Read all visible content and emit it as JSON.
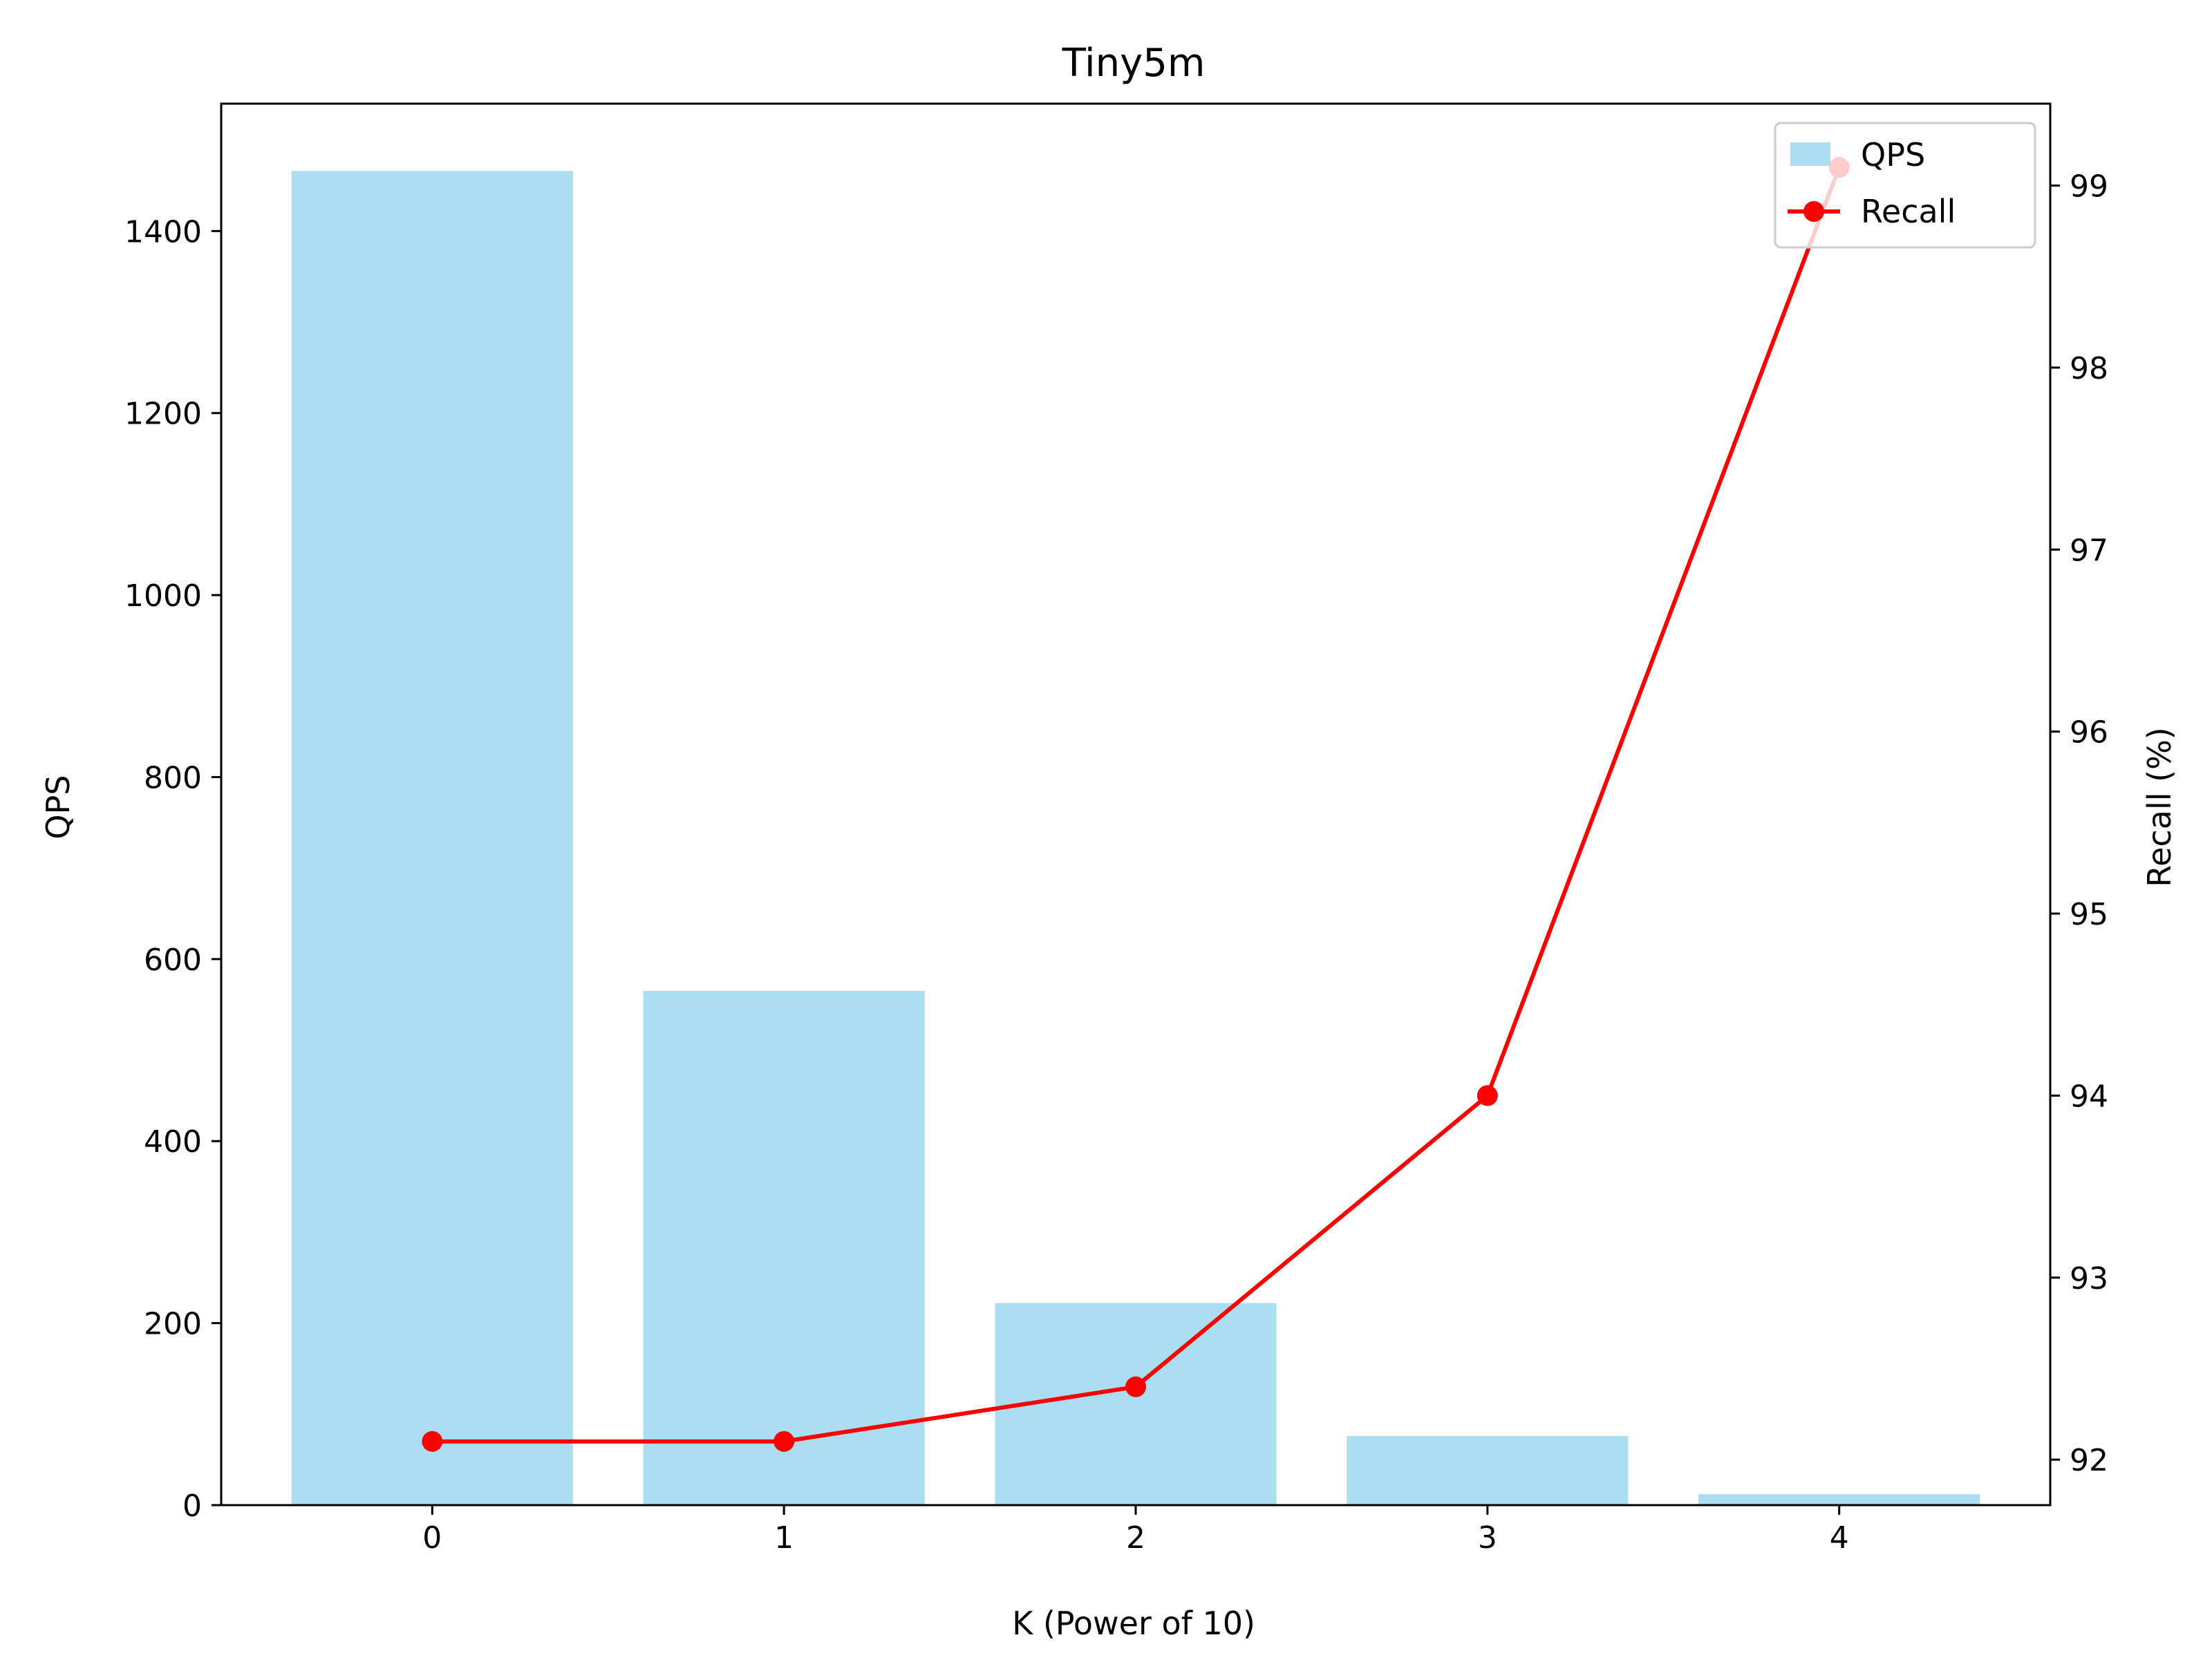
{
  "chart_data": {
    "type": "bar",
    "title": "Tiny5m",
    "xlabel": "K (Power of 10)",
    "ylabel": "QPS",
    "y2label": "Recall (%)",
    "categories": [
      "0",
      "1",
      "2",
      "3",
      "4"
    ],
    "x_ticks": [
      "0",
      "1",
      "2",
      "3",
      "4"
    ],
    "ylim": [
      0,
      1540
    ],
    "y_ticks": [
      "0",
      "200",
      "400",
      "600",
      "800",
      "1000",
      "1200",
      "1400"
    ],
    "y2lim": [
      91.75,
      99.45
    ],
    "y2_ticks": [
      "92",
      "93",
      "94",
      "95",
      "96",
      "97",
      "98",
      "99"
    ],
    "grid": false,
    "legend_position": "top-right",
    "series": [
      {
        "name": "QPS",
        "kind": "bar",
        "axis": "left",
        "color": "#87ceeb",
        "values": [
          1466,
          565,
          222,
          76,
          12
        ]
      },
      {
        "name": "Recall",
        "kind": "line",
        "axis": "right",
        "color": "#ff0000",
        "marker": "circle",
        "values": [
          92.1,
          92.1,
          92.4,
          94.0,
          99.1
        ]
      }
    ]
  }
}
